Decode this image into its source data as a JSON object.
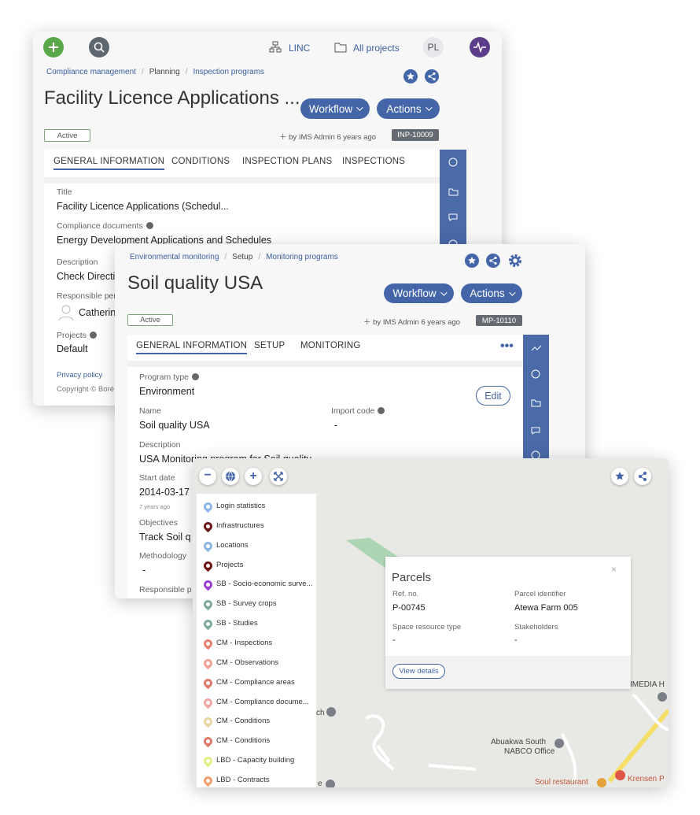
{
  "inspection_program": {
    "header": {
      "linc": "LINC",
      "all_projects": "All projects",
      "user_initials": "PL"
    },
    "breadcrumb": [
      "Compliance management",
      "Planning",
      "Inspection programs"
    ],
    "title": "Facility Licence Applications ...",
    "buttons": [
      "Workflow",
      "Actions"
    ],
    "status": "Active",
    "created": "by IMS Admin 6 years ago",
    "id": "INP-10009",
    "tabs": [
      "GENERAL INFORMATION",
      "CONDITIONS",
      "INSPECTION PLANS",
      "INSPECTIONS"
    ],
    "fields": [
      {
        "label": "Title",
        "value": "Facility Licence Applications (Schedul..."
      },
      {
        "label": "Compliance documents",
        "value": "Energy Development Applications and Schedules"
      },
      {
        "label": "Description",
        "value": "Check Directi"
      },
      {
        "label": "Responsible per",
        "value": "Catherin"
      },
      {
        "label": "Projects",
        "value": "Default"
      }
    ],
    "footer": [
      "Privacy policy",
      "Copyright © Boré"
    ]
  },
  "monitoring_program": {
    "breadcrumb": [
      "Environmental monitoring",
      "Setup",
      "Monitoring programs"
    ],
    "title": "Soil quality USA",
    "buttons": [
      "Workflow",
      "Actions"
    ],
    "status": "Active",
    "created": "by IMS Admin 6 years ago",
    "id": "MP-10110",
    "tabs": [
      "GENERAL INFORMATION",
      "SETUP",
      "MONITORING"
    ],
    "edit": "Edit",
    "fields": [
      {
        "label": "Program type",
        "value": "Environment"
      },
      {
        "label": "Name",
        "value": "Soil quality USA"
      },
      {
        "label": "Import code",
        "value": "-"
      },
      {
        "label": "Description",
        "value": "USA Monitoring program for Soil quality"
      },
      {
        "label": "Start date",
        "value": "2014-03-17",
        "note": "7 years ago"
      },
      {
        "label": "Objectives",
        "value": "Track Soil q"
      },
      {
        "label": "Methodology",
        "value": "-"
      },
      {
        "label": "Responsible p"
      }
    ]
  },
  "map": {
    "layers": [
      {
        "name": "Login statistics",
        "color": "#8fb7e6"
      },
      {
        "name": "Infrastructures",
        "color": "#6e1616"
      },
      {
        "name": "Locations",
        "color": "#8fb7e6"
      },
      {
        "name": "Projects",
        "color": "#6e1616"
      },
      {
        "name": "SB - Socio-economic surve...",
        "color": "#9b3fd6"
      },
      {
        "name": "SB - Survey crops",
        "color": "#7fa89f"
      },
      {
        "name": "SB - Studies",
        "color": "#7fa89f"
      },
      {
        "name": "CM - Inspections",
        "color": "#e8806f"
      },
      {
        "name": "CM - Observations",
        "color": "#f0a095"
      },
      {
        "name": "CM - Compliance areas",
        "color": "#e07a6a"
      },
      {
        "name": "CM - Compliance docume...",
        "color": "#f0a8a0"
      },
      {
        "name": "CM - Conditions",
        "color": "#e6d4a0"
      },
      {
        "name": "CM - Conditions",
        "color": "#e07a6a"
      },
      {
        "name": "LBD - Capacity building",
        "color": "#e4ef86"
      },
      {
        "name": "LBD - Contracts",
        "color": "#f0a070"
      }
    ],
    "popup": {
      "title": "Parcels",
      "fields": [
        {
          "label": "Ref. no.",
          "value": "P-00745"
        },
        {
          "label": "Parcel identifier",
          "value": "Atewa Farm 005"
        },
        {
          "label": "Space resource type",
          "value": "-"
        },
        {
          "label": "Stakeholders",
          "value": "-"
        }
      ],
      "button": "View details"
    },
    "places": [
      "IMEDIA H",
      "Abuakwa South",
      "NABCO Office",
      "Soul restaurant",
      "Krensen P",
      "ch",
      "e"
    ]
  }
}
